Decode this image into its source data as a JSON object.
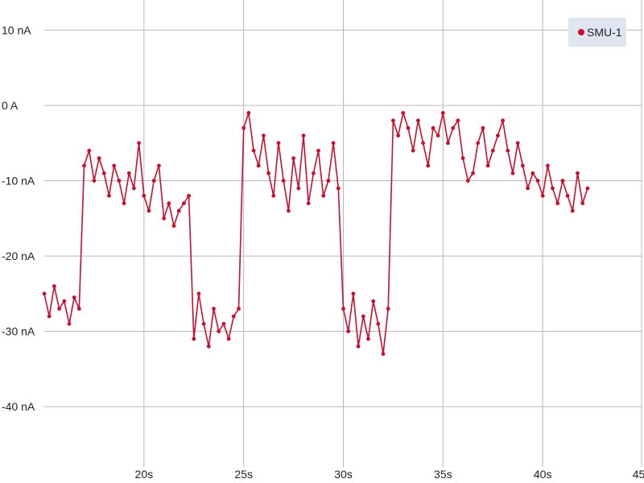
{
  "chart_data": {
    "type": "line",
    "title": "",
    "xlabel": "",
    "ylabel": "",
    "x_unit": "s",
    "xlim": [
      15,
      45
    ],
    "ylim": [
      -48,
      14
    ],
    "x_ticks": [
      {
        "value": 20,
        "label": "20s"
      },
      {
        "value": 25,
        "label": "25s"
      },
      {
        "value": 30,
        "label": "30s"
      },
      {
        "value": 35,
        "label": "35s"
      },
      {
        "value": 40,
        "label": "40s"
      },
      {
        "value": 45,
        "label": "45s"
      }
    ],
    "y_ticks": [
      {
        "value": 10,
        "label": "10 nA"
      },
      {
        "value": 0,
        "label": "0 A"
      },
      {
        "value": -10,
        "label": "-10 nA"
      },
      {
        "value": -20,
        "label": "-20 nA"
      },
      {
        "value": -30,
        "label": "-30 nA"
      },
      {
        "value": -40,
        "label": "-40 nA"
      }
    ],
    "grid": true,
    "legend_position": "top-right",
    "series": [
      {
        "name": "SMU-1",
        "color": "#c8102e",
        "x": [
          15.0,
          15.25,
          15.5,
          15.75,
          16.0,
          16.25,
          16.5,
          16.75,
          17.0,
          17.25,
          17.5,
          17.75,
          18.0,
          18.25,
          18.5,
          18.75,
          19.0,
          19.25,
          19.5,
          19.75,
          20.0,
          20.25,
          20.5,
          20.75,
          21.0,
          21.25,
          21.5,
          21.75,
          22.0,
          22.25,
          22.5,
          22.75,
          23.0,
          23.25,
          23.5,
          23.75,
          24.0,
          24.25,
          24.5,
          24.75,
          25.0,
          25.25,
          25.5,
          25.75,
          26.0,
          26.25,
          26.5,
          26.75,
          27.0,
          27.25,
          27.5,
          27.75,
          28.0,
          28.25,
          28.5,
          28.75,
          29.0,
          29.25,
          29.5,
          29.75,
          30.0,
          30.25,
          30.5,
          30.75,
          31.0,
          31.25,
          31.5,
          31.75,
          32.0,
          32.25,
          32.5,
          32.75,
          33.0,
          33.25,
          33.5,
          33.75,
          34.0,
          34.25,
          34.5,
          34.75,
          35.0,
          35.25,
          35.5,
          35.75,
          36.0,
          36.25,
          36.5,
          36.75,
          37.0,
          37.25,
          37.5,
          37.75,
          38.0,
          38.25,
          38.5,
          38.75,
          39.0,
          39.25,
          39.5,
          39.75,
          40.0,
          40.25,
          40.5,
          40.75,
          41.0,
          41.25,
          41.5,
          41.75,
          42.0,
          42.25
        ],
        "values": [
          -25.0,
          -28.0,
          -24.0,
          -27.0,
          -26.0,
          -29.0,
          -25.5,
          -27.0,
          -8.0,
          -6.0,
          -10.0,
          -7.0,
          -9.0,
          -12.0,
          -8.0,
          -10.0,
          -13.0,
          -9.0,
          -11.0,
          -5.0,
          -12.0,
          -14.0,
          -10.0,
          -8.0,
          -15.0,
          -13.0,
          -16.0,
          -14.0,
          -13.0,
          -12.0,
          -31.0,
          -25.0,
          -29.0,
          -32.0,
          -27.0,
          -30.0,
          -29.0,
          -31.0,
          -28.0,
          -27.0,
          -3.0,
          -1.0,
          -6.0,
          -8.0,
          -4.0,
          -9.0,
          -12.0,
          -5.0,
          -10.0,
          -14.0,
          -7.0,
          -11.0,
          -4.0,
          -13.0,
          -9.0,
          -6.0,
          -12.0,
          -10.0,
          -5.0,
          -11.0,
          -27.0,
          -30.0,
          -25.0,
          -32.0,
          -28.0,
          -31.0,
          -26.0,
          -29.0,
          -33.0,
          -27.0,
          -2.0,
          -4.0,
          -1.0,
          -3.0,
          -6.0,
          -2.0,
          -5.0,
          -8.0,
          -3.0,
          -4.0,
          -1.0,
          -5.0,
          -3.0,
          -2.0,
          -7.0,
          -10.0,
          -9.0,
          -5.0,
          -3.0,
          -8.0,
          -6.0,
          -4.0,
          -2.0,
          -6.0,
          -9.0,
          -5.0,
          -8.0,
          -11.0,
          -9.0,
          -10.0,
          -12.0,
          -8.0,
          -11.0,
          -13.0,
          -10.0,
          -12.0,
          -14.0,
          -9.0,
          -13.0,
          -11.0
        ]
      }
    ]
  }
}
